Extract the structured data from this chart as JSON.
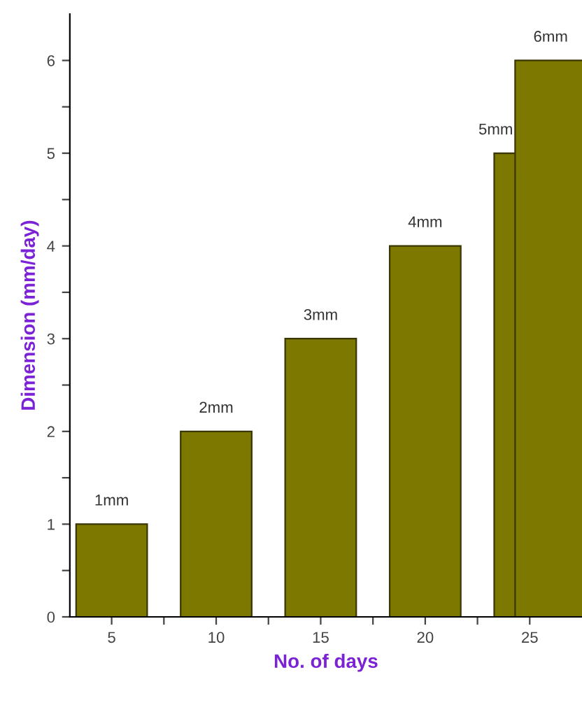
{
  "chart_data": {
    "type": "bar",
    "xlabel": "No. of days",
    "ylabel": "Dimension (mm/day)",
    "x": [
      5,
      10,
      15,
      20,
      25,
      26
    ],
    "values": [
      1,
      2,
      3,
      4,
      5,
      6
    ],
    "value_labels": [
      "1mm",
      "2mm",
      "3mm",
      "4mm",
      "5mm",
      "6mm"
    ],
    "color": "#7d7800",
    "xlim": [
      3,
      27.5
    ],
    "ylim": [
      0,
      6.5
    ],
    "xticks": [
      5,
      {
        "value": 7.5,
        "label": null
      },
      10,
      {
        "value": 12.5,
        "label": null
      },
      15,
      {
        "value": 17.5,
        "label": null
      },
      20,
      {
        "value": 22.5,
        "label": null
      },
      25
    ],
    "yticks": [
      0,
      {
        "value": 0.5,
        "label": null
      },
      1,
      {
        "value": 1.5,
        "label": null
      },
      2,
      {
        "value": 2.5,
        "label": null
      },
      3,
      {
        "value": 3.5,
        "label": null
      },
      4,
      {
        "value": 4.5,
        "label": null
      },
      5,
      {
        "value": 5.5,
        "label": null
      },
      6
    ],
    "grid": false,
    "legend": false
  }
}
